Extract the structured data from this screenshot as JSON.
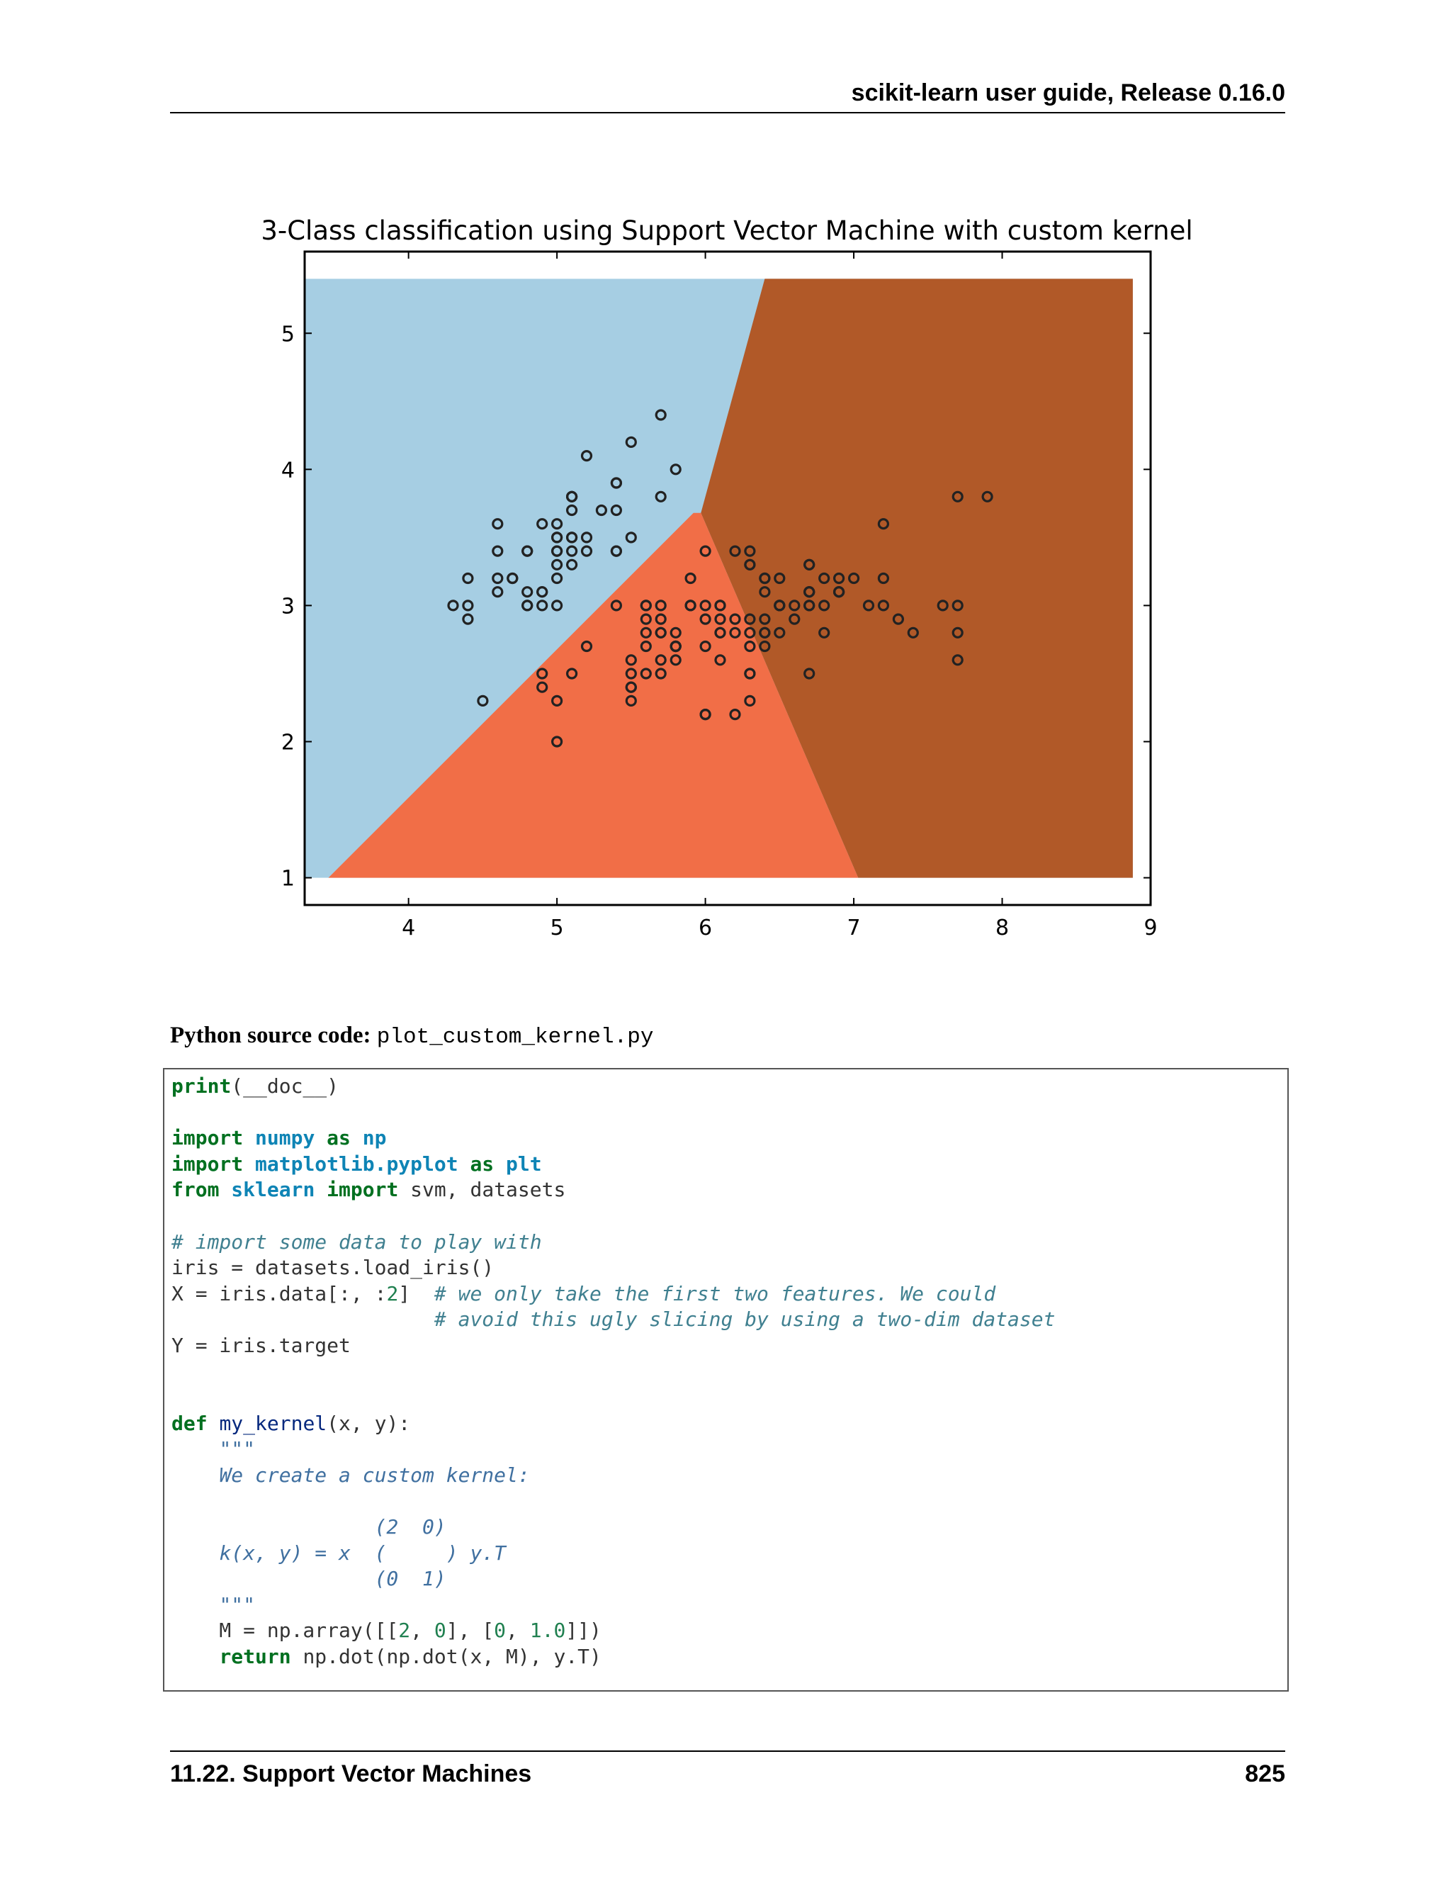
{
  "header": {
    "title": "scikit-learn user guide, Release 0.16.0"
  },
  "chart_data": {
    "type": "scatter",
    "title": "3-Class classification using Support Vector Machine with custom kernel",
    "xlabel": "",
    "ylabel": "",
    "xlim": [
      3.3,
      9.0
    ],
    "ylim": [
      0.8,
      5.6
    ],
    "xticks": [
      4,
      5,
      6,
      7,
      8,
      9
    ],
    "yticks": [
      1,
      2,
      3,
      4,
      5
    ],
    "grid": false,
    "region_colors": {
      "class0": "#a6cee3",
      "class1": "#f16e47",
      "class2": "#b15928"
    },
    "marker_color": "#222222",
    "points": [
      [
        5.1,
        3.5
      ],
      [
        4.9,
        3.0
      ],
      [
        4.7,
        3.2
      ],
      [
        4.6,
        3.1
      ],
      [
        5.0,
        3.6
      ],
      [
        5.4,
        3.9
      ],
      [
        4.6,
        3.4
      ],
      [
        5.0,
        3.4
      ],
      [
        4.4,
        2.9
      ],
      [
        4.9,
        3.1
      ],
      [
        5.4,
        3.7
      ],
      [
        4.8,
        3.4
      ],
      [
        4.8,
        3.0
      ],
      [
        4.3,
        3.0
      ],
      [
        5.8,
        4.0
      ],
      [
        5.7,
        4.4
      ],
      [
        5.4,
        3.9
      ],
      [
        5.1,
        3.5
      ],
      [
        5.7,
        3.8
      ],
      [
        5.1,
        3.8
      ],
      [
        5.4,
        3.4
      ],
      [
        5.1,
        3.7
      ],
      [
        4.6,
        3.6
      ],
      [
        5.1,
        3.3
      ],
      [
        4.8,
        3.4
      ],
      [
        5.0,
        3.0
      ],
      [
        5.0,
        3.4
      ],
      [
        5.2,
        3.5
      ],
      [
        5.2,
        3.4
      ],
      [
        4.7,
        3.2
      ],
      [
        4.8,
        3.1
      ],
      [
        5.4,
        3.4
      ],
      [
        5.2,
        4.1
      ],
      [
        5.5,
        4.2
      ],
      [
        4.9,
        3.1
      ],
      [
        5.0,
        3.2
      ],
      [
        5.5,
        3.5
      ],
      [
        4.9,
        3.6
      ],
      [
        4.4,
        3.0
      ],
      [
        5.1,
        3.4
      ],
      [
        5.0,
        3.5
      ],
      [
        4.5,
        2.3
      ],
      [
        4.4,
        3.2
      ],
      [
        5.0,
        3.5
      ],
      [
        5.1,
        3.8
      ],
      [
        4.8,
        3.0
      ],
      [
        5.1,
        3.8
      ],
      [
        4.6,
        3.2
      ],
      [
        5.3,
        3.7
      ],
      [
        5.0,
        3.3
      ],
      [
        7.0,
        3.2
      ],
      [
        6.4,
        3.2
      ],
      [
        6.9,
        3.1
      ],
      [
        5.5,
        2.3
      ],
      [
        6.5,
        2.8
      ],
      [
        5.7,
        2.8
      ],
      [
        6.3,
        3.3
      ],
      [
        4.9,
        2.4
      ],
      [
        6.6,
        2.9
      ],
      [
        5.2,
        2.7
      ],
      [
        5.0,
        2.0
      ],
      [
        5.9,
        3.0
      ],
      [
        6.0,
        2.2
      ],
      [
        6.1,
        2.9
      ],
      [
        5.6,
        2.9
      ],
      [
        6.7,
        3.1
      ],
      [
        5.6,
        3.0
      ],
      [
        5.8,
        2.7
      ],
      [
        6.2,
        2.2
      ],
      [
        5.6,
        2.5
      ],
      [
        5.9,
        3.2
      ],
      [
        6.1,
        2.8
      ],
      [
        6.3,
        2.5
      ],
      [
        6.1,
        2.8
      ],
      [
        6.4,
        2.9
      ],
      [
        6.6,
        3.0
      ],
      [
        6.8,
        2.8
      ],
      [
        6.7,
        3.0
      ],
      [
        6.0,
        2.9
      ],
      [
        5.7,
        2.6
      ],
      [
        5.5,
        2.4
      ],
      [
        5.5,
        2.4
      ],
      [
        5.8,
        2.7
      ],
      [
        6.0,
        2.7
      ],
      [
        5.4,
        3.0
      ],
      [
        6.0,
        3.4
      ],
      [
        6.7,
        3.1
      ],
      [
        6.3,
        2.3
      ],
      [
        5.6,
        3.0
      ],
      [
        5.5,
        2.5
      ],
      [
        5.5,
        2.6
      ],
      [
        6.1,
        3.0
      ],
      [
        5.8,
        2.6
      ],
      [
        5.0,
        2.3
      ],
      [
        5.6,
        2.7
      ],
      [
        5.7,
        3.0
      ],
      [
        5.7,
        2.9
      ],
      [
        6.2,
        2.9
      ],
      [
        5.1,
        2.5
      ],
      [
        5.7,
        2.8
      ],
      [
        6.3,
        3.3
      ],
      [
        5.8,
        2.7
      ],
      [
        7.1,
        3.0
      ],
      [
        6.3,
        2.9
      ],
      [
        6.5,
        3.0
      ],
      [
        7.6,
        3.0
      ],
      [
        4.9,
        2.5
      ],
      [
        7.3,
        2.9
      ],
      [
        6.7,
        2.5
      ],
      [
        7.2,
        3.6
      ],
      [
        6.5,
        3.2
      ],
      [
        6.4,
        2.7
      ],
      [
        6.8,
        3.0
      ],
      [
        5.7,
        2.5
      ],
      [
        5.8,
        2.8
      ],
      [
        6.4,
        3.2
      ],
      [
        6.5,
        3.0
      ],
      [
        7.7,
        3.8
      ],
      [
        7.7,
        2.6
      ],
      [
        6.0,
        2.2
      ],
      [
        6.9,
        3.2
      ],
      [
        5.6,
        2.8
      ],
      [
        7.7,
        2.8
      ],
      [
        6.3,
        2.7
      ],
      [
        6.7,
        3.3
      ],
      [
        7.2,
        3.2
      ],
      [
        6.2,
        2.8
      ],
      [
        6.1,
        3.0
      ],
      [
        6.4,
        2.8
      ],
      [
        7.2,
        3.0
      ],
      [
        7.4,
        2.8
      ],
      [
        7.9,
        3.8
      ],
      [
        6.4,
        2.8
      ],
      [
        6.3,
        2.8
      ],
      [
        6.1,
        2.6
      ],
      [
        7.7,
        3.0
      ],
      [
        6.3,
        3.4
      ],
      [
        6.4,
        3.1
      ],
      [
        6.0,
        3.0
      ],
      [
        6.9,
        3.1
      ],
      [
        6.7,
        3.1
      ],
      [
        6.9,
        3.1
      ],
      [
        5.8,
        2.7
      ],
      [
        6.8,
        3.2
      ],
      [
        6.7,
        3.3
      ],
      [
        6.7,
        3.0
      ],
      [
        6.3,
        2.5
      ],
      [
        6.5,
        3.0
      ],
      [
        6.2,
        3.4
      ],
      [
        5.9,
        3.0
      ]
    ]
  },
  "source": {
    "label": "Python source code:",
    "filename": "plot_custom_kernel.py"
  },
  "code_lines": [
    [
      [
        "kw",
        "print"
      ],
      [
        "p",
        "(__doc__)"
      ]
    ],
    [],
    [
      [
        "kw",
        "import"
      ],
      [
        "p",
        " "
      ],
      [
        "nm",
        "numpy"
      ],
      [
        "p",
        " "
      ],
      [
        "kw",
        "as"
      ],
      [
        "p",
        " "
      ],
      [
        "nm",
        "np"
      ]
    ],
    [
      [
        "kw",
        "import"
      ],
      [
        "p",
        " "
      ],
      [
        "nm",
        "matplotlib.pyplot"
      ],
      [
        "p",
        " "
      ],
      [
        "kw",
        "as"
      ],
      [
        "p",
        " "
      ],
      [
        "nm",
        "plt"
      ]
    ],
    [
      [
        "kw",
        "from"
      ],
      [
        "p",
        " "
      ],
      [
        "nm",
        "sklearn"
      ],
      [
        "p",
        " "
      ],
      [
        "kw",
        "import"
      ],
      [
        "p",
        " svm, datasets"
      ]
    ],
    [],
    [
      [
        "cm",
        "# import some data to play with"
      ]
    ],
    [
      [
        "p",
        "iris = datasets.load_iris()"
      ]
    ],
    [
      [
        "p",
        "X = iris.data[:, :"
      ],
      [
        "num",
        "2"
      ],
      [
        "p",
        "]  "
      ],
      [
        "cm",
        "# we only take the first two features. We could"
      ]
    ],
    [
      [
        "p",
        "                      "
      ],
      [
        "cm",
        "# avoid this ugly slicing by using a two-dim dataset"
      ]
    ],
    [
      [
        "p",
        "Y = iris.target"
      ]
    ],
    [],
    [],
    [
      [
        "kw",
        "def"
      ],
      [
        "p",
        " "
      ],
      [
        "fn",
        "my_kernel"
      ],
      [
        "p",
        "(x, y):"
      ]
    ],
    [
      [
        "p",
        "    "
      ],
      [
        "st",
        "\"\"\""
      ]
    ],
    [
      [
        "p",
        "    "
      ],
      [
        "st",
        "We create a custom kernel:"
      ]
    ],
    [],
    [
      [
        "p",
        "                 "
      ],
      [
        "st",
        "(2  0)"
      ]
    ],
    [
      [
        "p",
        "    "
      ],
      [
        "st",
        "k(x, y) = x  (     ) y.T"
      ]
    ],
    [
      [
        "p",
        "                 "
      ],
      [
        "st",
        "(0  1)"
      ]
    ],
    [
      [
        "p",
        "    "
      ],
      [
        "st",
        "\"\"\""
      ]
    ],
    [
      [
        "p",
        "    M = np.array([["
      ],
      [
        "num",
        "2"
      ],
      [
        "p",
        ", "
      ],
      [
        "num",
        "0"
      ],
      [
        "p",
        "], ["
      ],
      [
        "num",
        "0"
      ],
      [
        "p",
        ", "
      ],
      [
        "num",
        "1.0"
      ],
      [
        "p",
        "]])"
      ]
    ],
    [
      [
        "p",
        "    "
      ],
      [
        "kw",
        "return"
      ],
      [
        "p",
        " np.dot(np.dot(x, M), y.T)"
      ]
    ]
  ],
  "footer": {
    "section": "11.22.  Support Vector Machines",
    "page": "825"
  }
}
